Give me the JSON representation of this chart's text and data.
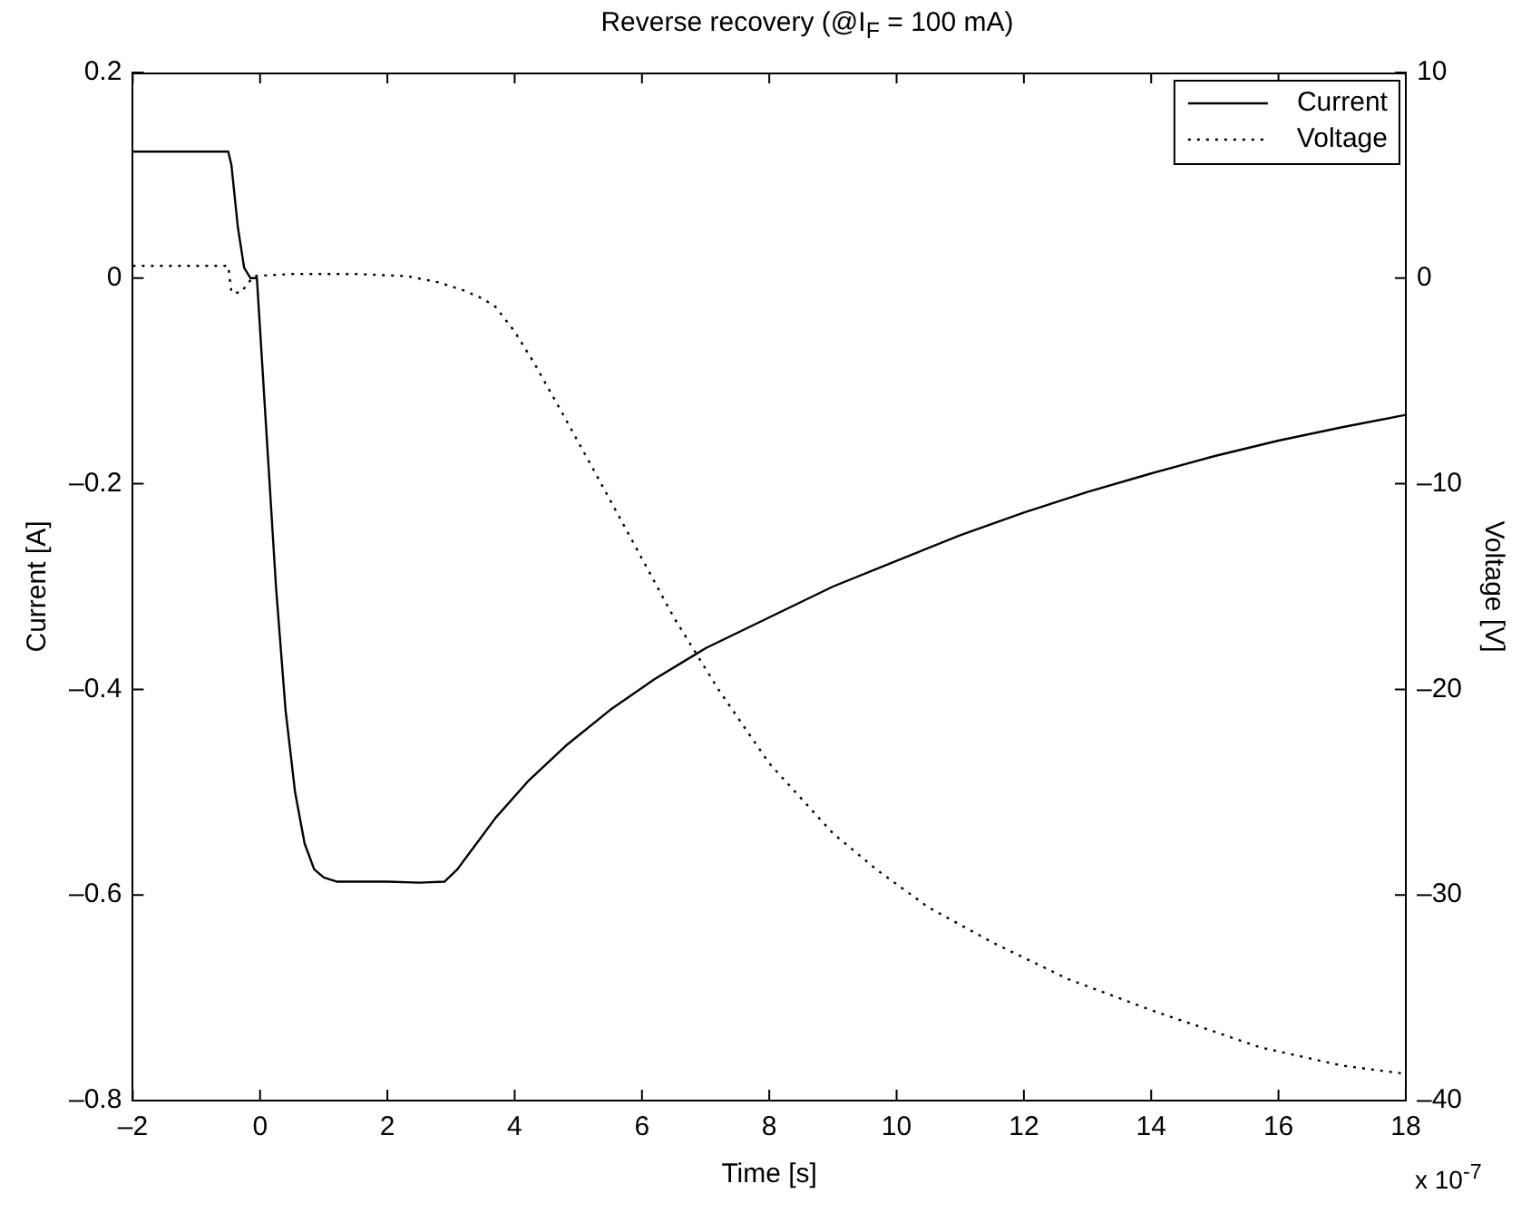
{
  "chart_data": {
    "type": "line",
    "title": "Reverse recovery (@I$_{F}$ = 100 mA)",
    "xlabel": "Time [s]",
    "ylabel": "Current [A]",
    "y2label": "Voltage [V]",
    "annotations": [
      "x 10$^{-7}$"
    ],
    "xlim": [
      -2,
      18
    ],
    "xticks": [
      {
        "value": -2,
        "label": "–2"
      },
      0,
      2,
      4,
      6,
      8,
      10,
      12,
      14,
      16,
      18
    ],
    "ylim": [
      -0.8,
      0.2
    ],
    "yticks": [
      {
        "value": -0.8,
        "label": "–0.8"
      },
      {
        "value": -0.6,
        "label": "–0.6"
      },
      {
        "value": -0.4,
        "label": "–0.4"
      },
      {
        "value": -0.2,
        "label": "–0.2"
      },
      0,
      0.2
    ],
    "y2lim": [
      -40,
      10
    ],
    "y2ticks": [
      {
        "value": -40,
        "label": "–40"
      },
      {
        "value": -30,
        "label": "–30"
      },
      {
        "value": -20,
        "label": "–20"
      },
      {
        "value": -10,
        "label": "–10"
      },
      0,
      10
    ],
    "grid": false,
    "legend": "top right",
    "marker": "none",
    "series": [
      {
        "name": "Current",
        "color": "#000000",
        "line_style": "solid",
        "x": [
          -2,
          -0.5,
          -0.45,
          -0.35,
          -0.25,
          -0.15,
          -0.05,
          0.1,
          0.25,
          0.4,
          0.55,
          0.7,
          0.85,
          1.0,
          1.2,
          1.6,
          2.0,
          2.5,
          2.9,
          3.1,
          3.4,
          3.7,
          4.2,
          4.8,
          5.5,
          6.2,
          7.0,
          8.0,
          9.0,
          10.0,
          11.0,
          12.0,
          13.0,
          14.0,
          15.0,
          16.0,
          17.0,
          18.0
        ],
        "values": [
          0.123,
          0.123,
          0.11,
          0.05,
          0.01,
          0.0,
          0.0,
          -0.15,
          -0.3,
          -0.42,
          -0.5,
          -0.55,
          -0.575,
          -0.583,
          -0.587,
          -0.587,
          -0.587,
          -0.588,
          -0.587,
          -0.575,
          -0.55,
          -0.525,
          -0.49,
          -0.455,
          -0.42,
          -0.39,
          -0.36,
          -0.33,
          -0.3,
          -0.275,
          -0.25,
          -0.228,
          -0.208,
          -0.19,
          -0.173,
          -0.158,
          -0.145,
          -0.133
        ]
      },
      {
        "name": "Voltage",
        "color": "#000000",
        "line_style": "dotted",
        "axis": "y2",
        "x": [
          -2,
          -0.5,
          -0.45,
          -0.3,
          -0.1,
          0.5,
          1.5,
          2.3,
          2.8,
          3.2,
          3.5,
          3.7,
          4.0,
          4.3,
          4.7,
          5.2,
          5.8,
          6.5,
          7.2,
          8.0,
          9.0,
          9.7,
          10.5,
          11.5,
          12.7,
          14.0,
          15.7,
          17.0,
          18.0
        ],
        "values": [
          0.6,
          0.6,
          -0.7,
          -0.7,
          0.1,
          0.2,
          0.2,
          0.1,
          -0.2,
          -0.6,
          -1.0,
          -1.4,
          -2.6,
          -4.1,
          -6.3,
          -9.1,
          -12.5,
          -16.5,
          -20.0,
          -23.6,
          -27.0,
          -28.8,
          -30.6,
          -32.3,
          -34.1,
          -35.6,
          -37.4,
          -38.3,
          -38.7
        ]
      }
    ]
  }
}
